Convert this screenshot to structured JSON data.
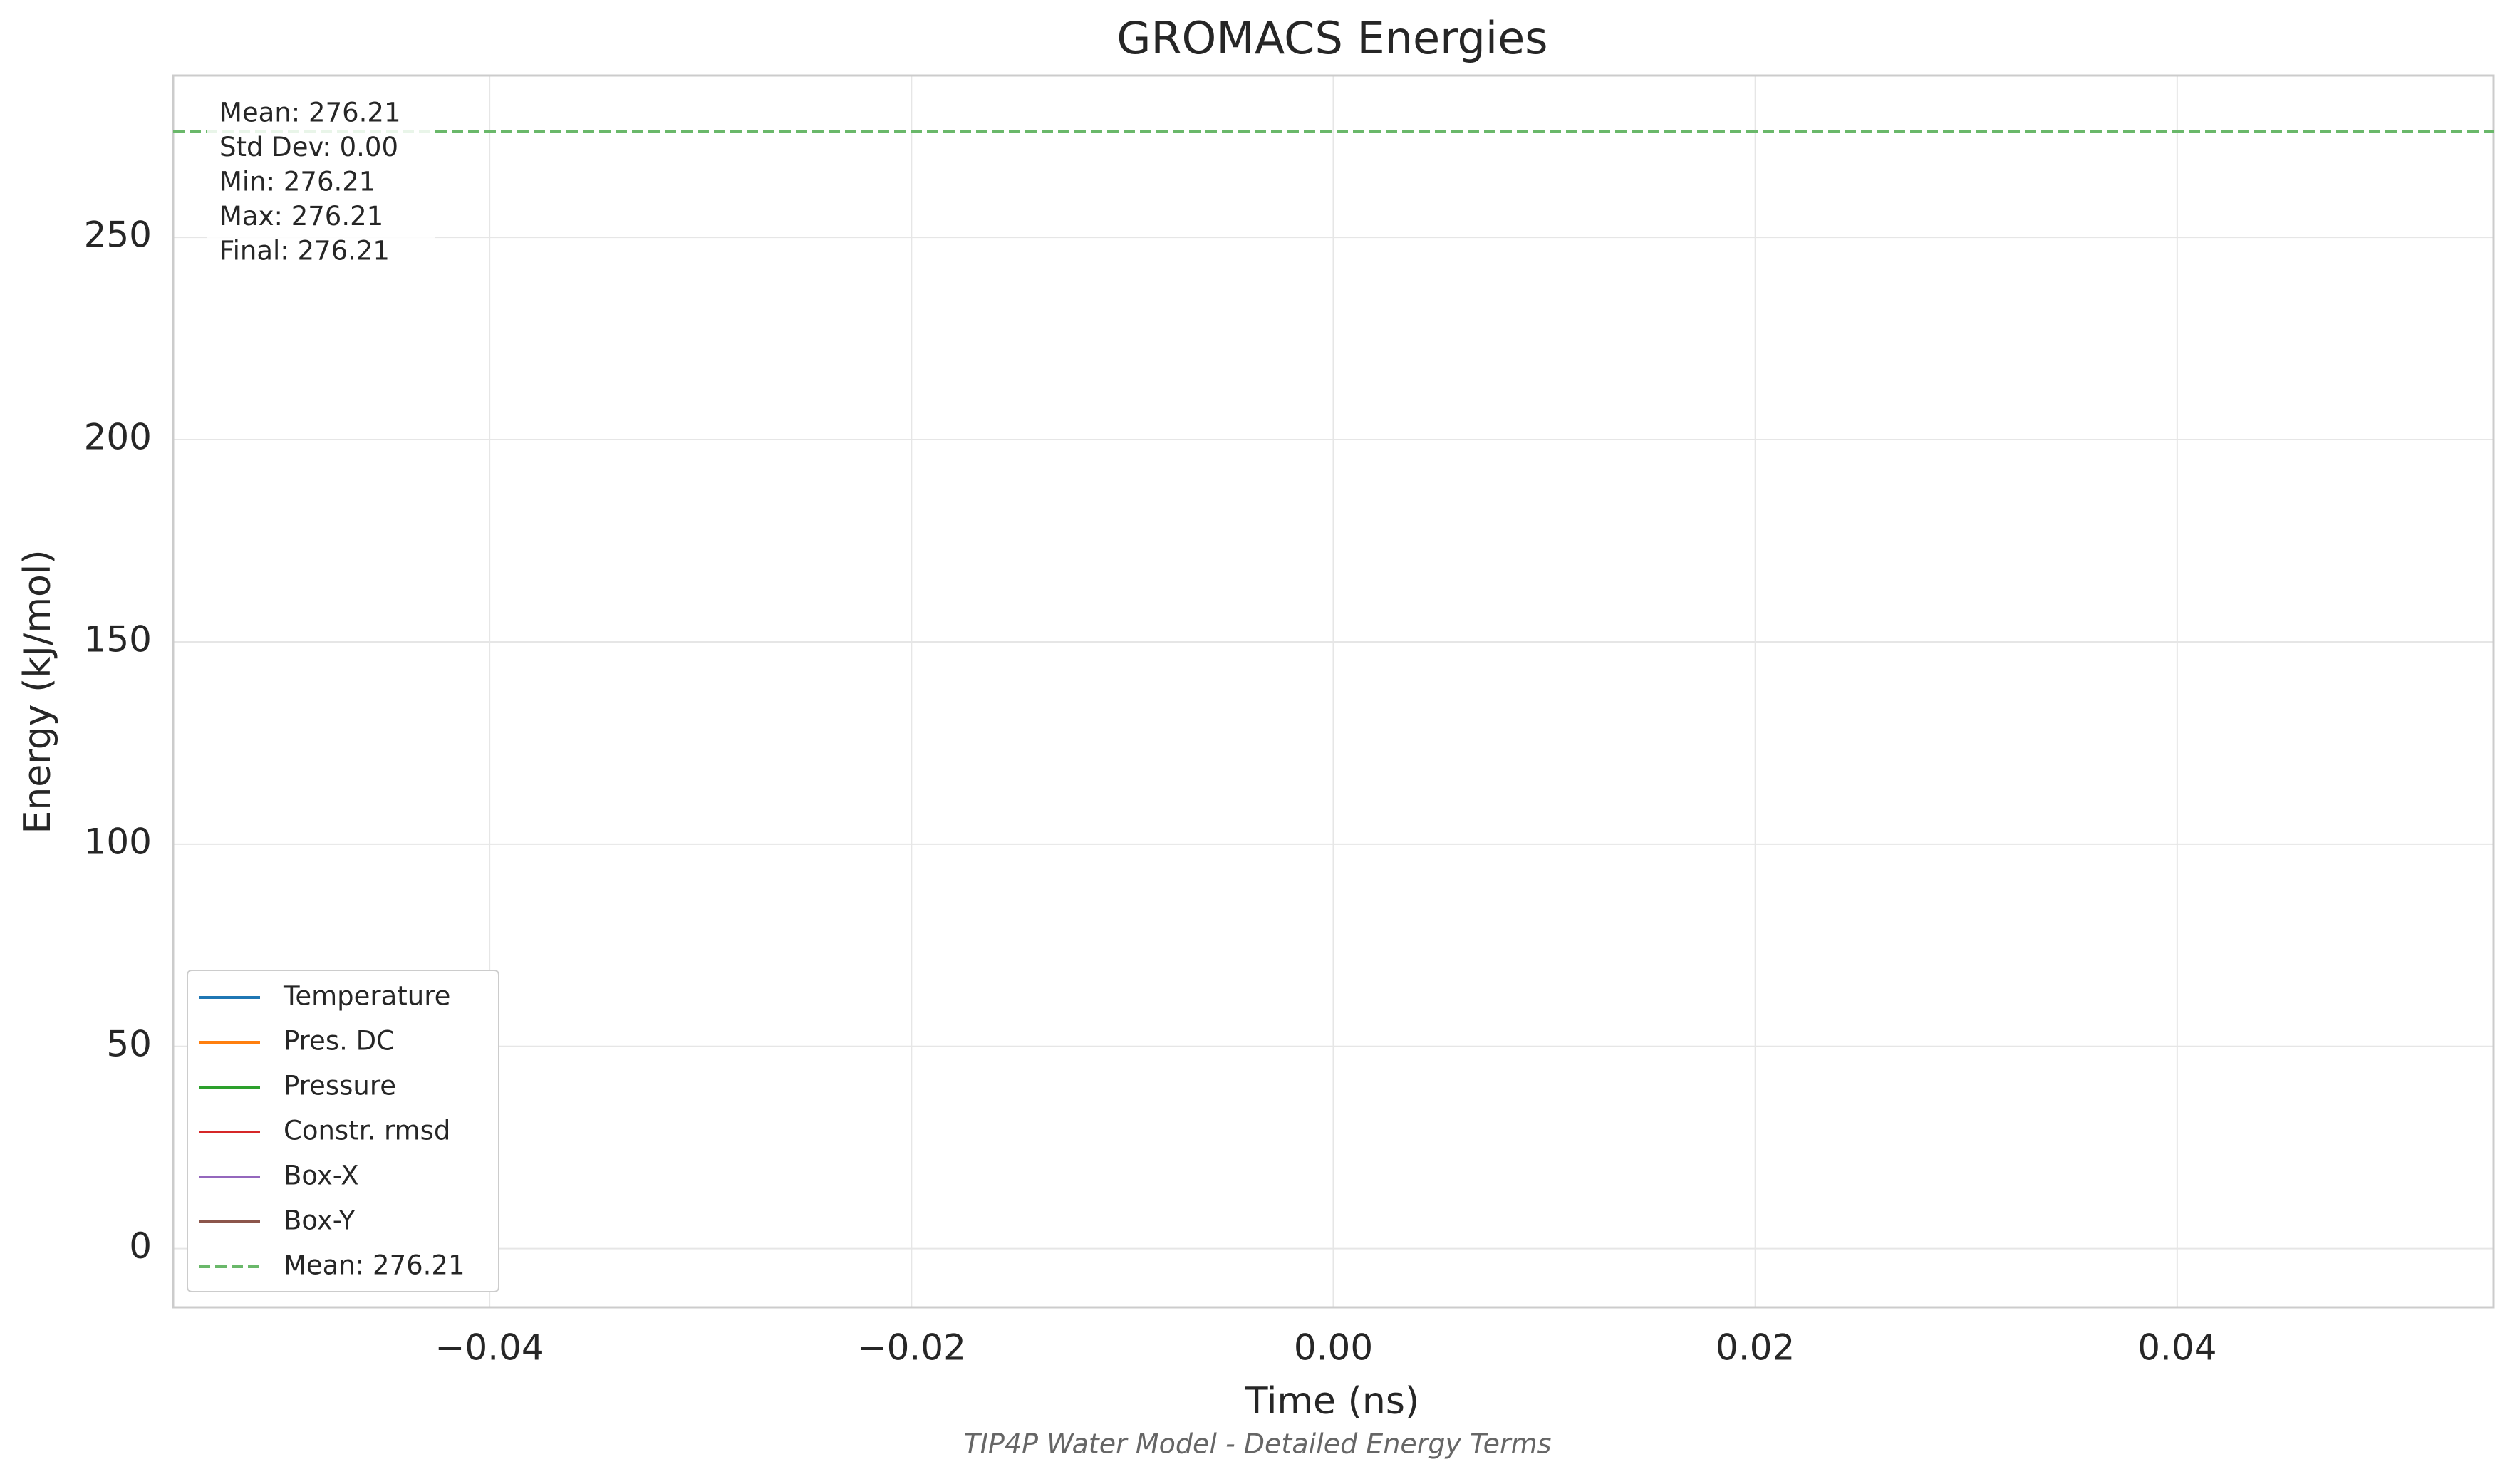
{
  "chart_data": {
    "type": "line",
    "title": "GROMACS Energies",
    "subtitle": "TIP4P Water Model - Detailed Energy Terms",
    "x_label": "Time (ns)",
    "y_label": "Energy (kJ/mol)",
    "x": [
      0
    ],
    "series": [
      {
        "name": "Temperature",
        "color": "#1f77b4",
        "values": [
          null
        ]
      },
      {
        "name": "Pres. DC",
        "color": "#ff7f0e",
        "values": [
          null
        ]
      },
      {
        "name": "Pressure",
        "color": "#2ca02c",
        "values": [
          null
        ]
      },
      {
        "name": "Constr. rmsd",
        "color": "#d62728",
        "values": [
          null
        ]
      },
      {
        "name": "Box-X",
        "color": "#9467bd",
        "values": [
          null
        ]
      },
      {
        "name": "Box-Y",
        "color": "#8c564b",
        "values": [
          null
        ]
      }
    ],
    "mean_line": {
      "value": 276.21,
      "label": "Mean: 276.21",
      "color": "#6ab86a"
    },
    "stats": [
      "Mean: 276.21",
      "Std Dev: 0.00",
      "Min: 276.21",
      "Max: 276.21",
      "Final: 276.21"
    ],
    "xlim": [
      -0.055,
      0.055
    ],
    "xticks": [
      {
        "value": -0.04,
        "label": "−0.04"
      },
      {
        "value": -0.02,
        "label": "−0.02"
      },
      {
        "value": 0,
        "label": "0.00"
      },
      {
        "value": 0.02,
        "label": "0.02"
      },
      {
        "value": 0.04,
        "label": "0.04"
      }
    ],
    "ylim": [
      -14.5,
      290
    ],
    "yticks": [
      0,
      50,
      100,
      150,
      200,
      250
    ],
    "grid": true,
    "legend": "lower left"
  }
}
